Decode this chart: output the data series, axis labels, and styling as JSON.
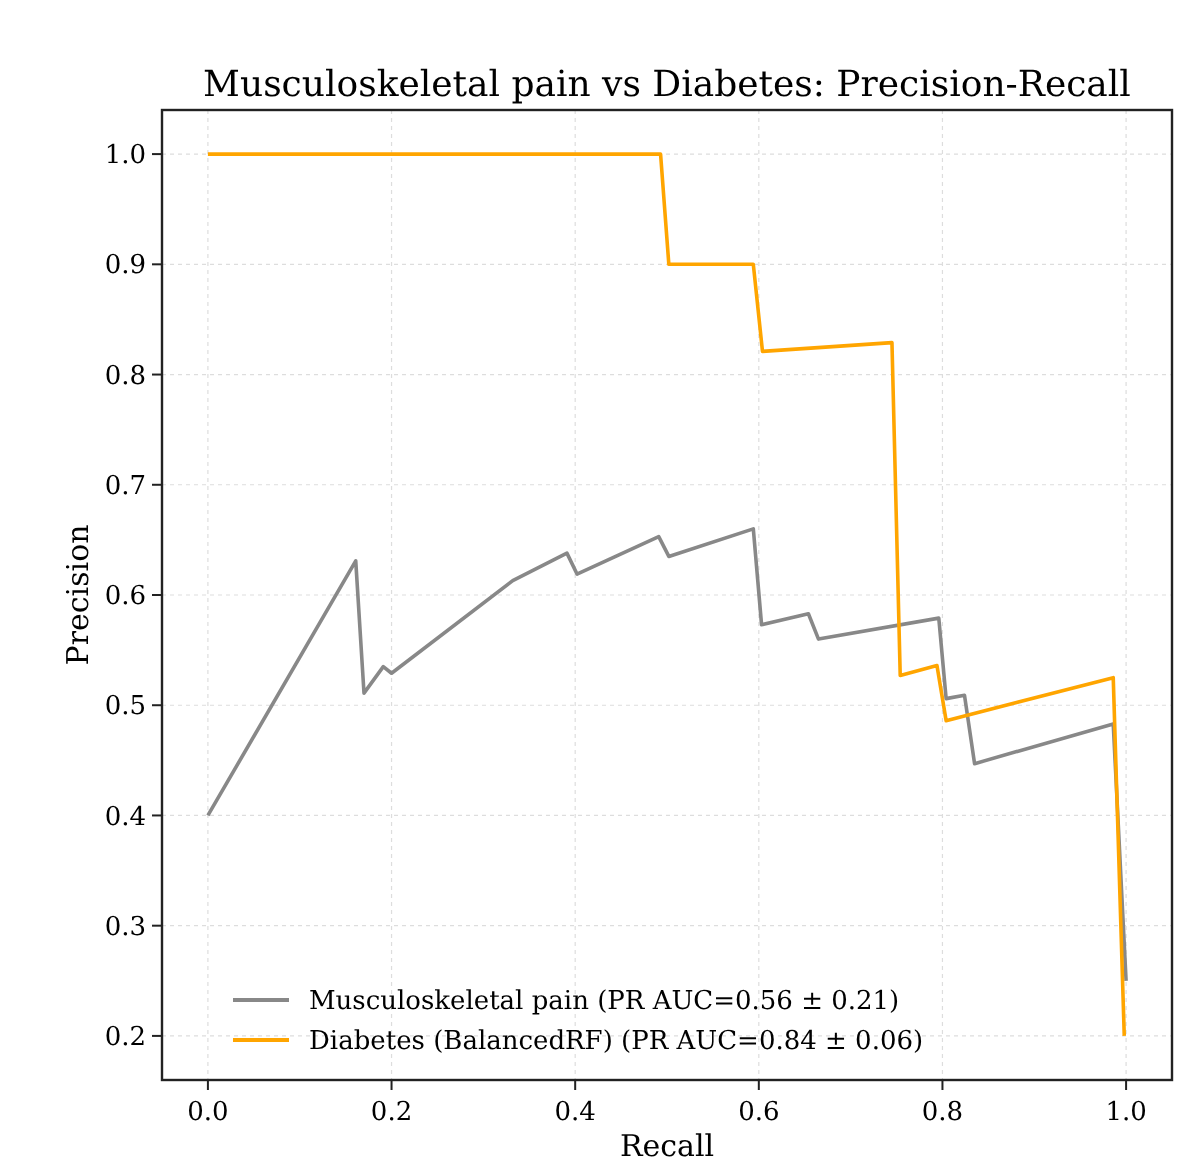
{
  "chart_data": {
    "type": "line",
    "title": "Musculoskeletal pain vs Diabetes: Precision-Recall",
    "xlabel": "Recall",
    "ylabel": "Precision",
    "xlim": [
      -0.05,
      1.05
    ],
    "ylim": [
      0.16,
      1.04
    ],
    "xticks": [
      {
        "value": 0,
        "label": "0.0"
      },
      0.2,
      0.4,
      0.6,
      0.8,
      {
        "value": 1,
        "label": "1.0"
      }
    ],
    "yticks": [
      0.2,
      0.3,
      0.4,
      0.5,
      0.6,
      0.7,
      0.8,
      0.9,
      {
        "value": 1,
        "label": "1.0"
      }
    ],
    "grid": true,
    "legend": "bottom",
    "line_style": "solid",
    "marker": "none",
    "series": [
      {
        "name": "Musculoskeletal pain (PR AUC=0.56 ± 0.21)",
        "color": "#888888",
        "x": [
          0,
          0.161,
          0.17,
          0.191,
          0.2,
          0.332,
          0.391,
          0.402,
          0.491,
          0.502,
          0.594,
          0.603,
          0.654,
          0.665,
          0.796,
          0.804,
          0.824,
          0.835,
          0.986,
          1.0
        ],
        "values": [
          0.4,
          0.631,
          0.511,
          0.535,
          0.529,
          0.613,
          0.638,
          0.619,
          0.653,
          0.635,
          0.66,
          0.573,
          0.583,
          0.56,
          0.579,
          0.506,
          0.509,
          0.447,
          0.483,
          0.25
        ]
      },
      {
        "name": "Diabetes (BalancedRF) (PR AUC=0.84 ± 0.06)",
        "color": "#ffa500",
        "x": [
          0,
          0.493,
          0.502,
          0.594,
          0.604,
          0.745,
          0.754,
          0.794,
          0.804,
          0.986,
          0.998
        ],
        "values": [
          1.0,
          1.0,
          0.9,
          0.9,
          0.821,
          0.829,
          0.527,
          0.536,
          0.486,
          0.525,
          0.2
        ]
      }
    ]
  }
}
